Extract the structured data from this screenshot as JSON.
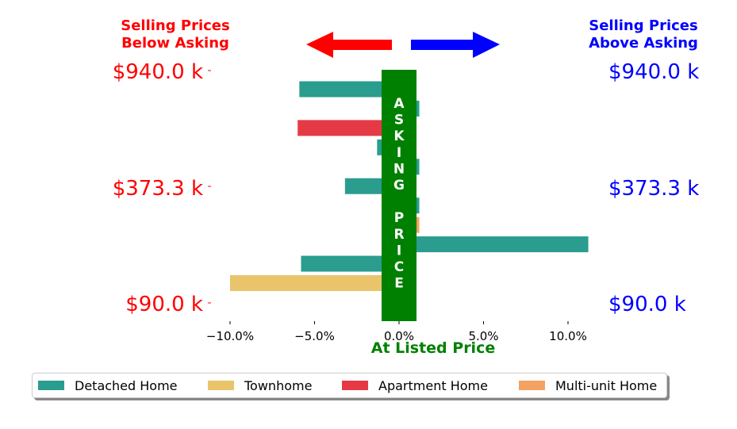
{
  "chart_data": {
    "type": "bar",
    "orientation": "horizontal",
    "xlabel": "At Listed Price",
    "xlim": [
      -0.1,
      0.113
    ],
    "x_ticks": [
      -0.1,
      -0.05,
      0.0,
      0.05,
      0.1
    ],
    "x_tick_labels": [
      "−10.0%",
      "−5.0%",
      "0.0%",
      "5.0%",
      "10.0%"
    ],
    "y_tick_labels": [
      "$940.0 k",
      "$373.3 k",
      "$90.0 k"
    ],
    "left_title": [
      "Selling Prices",
      "Below Asking"
    ],
    "right_title": [
      "Selling Prices",
      "Above Asking"
    ],
    "center_band_letters": [
      "A",
      "S",
      "K",
      "I",
      "N",
      "G",
      "",
      "P",
      "R",
      "I",
      "C",
      "E"
    ],
    "legend": [
      "Detached Home",
      "Townhome",
      "Apartment Home",
      "Multi-unit Home"
    ],
    "colors": {
      "Detached Home": "#2a9d8f",
      "Townhome": "#e9c46a",
      "Apartment Home": "#e63946",
      "Multi-unit Home": "#f4a261",
      "below": "#ff0000",
      "above": "#0000ff",
      "band": "#008000"
    },
    "bars": [
      {
        "type": "Detached Home",
        "value": -0.059
      },
      {
        "type": "Detached Home",
        "value": 0.012
      },
      {
        "type": "Apartment Home",
        "value": -0.06
      },
      {
        "type": "Detached Home",
        "value": -0.013
      },
      {
        "type": "Detached Home",
        "value": 0.012
      },
      {
        "type": "Detached Home",
        "value": -0.032
      },
      {
        "type": "Detached Home",
        "value": 0.012
      },
      {
        "type": "Multi-unit Home",
        "value": 0.012
      },
      {
        "type": "Detached Home",
        "value": 0.112
      },
      {
        "type": "Detached Home",
        "value": -0.058
      },
      {
        "type": "Townhome",
        "value": -0.1
      }
    ]
  }
}
